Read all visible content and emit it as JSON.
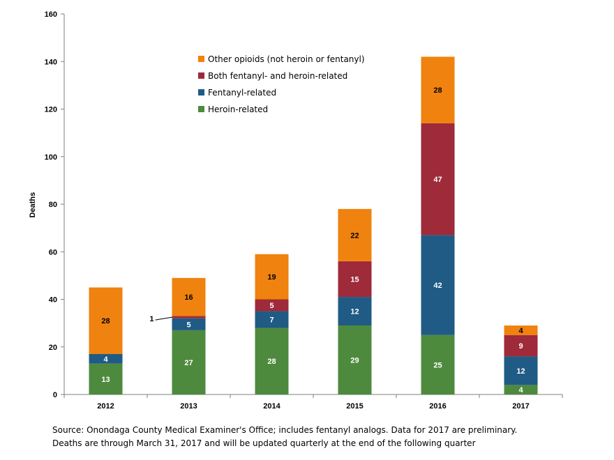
{
  "chart_data": {
    "type": "bar",
    "stacked": true,
    "categories": [
      "2012",
      "2013",
      "2014",
      "2015",
      "2016",
      "2017"
    ],
    "series": [
      {
        "name": "Heroin-related",
        "color": "#4e8a3e",
        "values": [
          13,
          27,
          28,
          29,
          25,
          4
        ]
      },
      {
        "name": "Fentanyl-related",
        "color": "#1f5b84",
        "values": [
          4,
          5,
          7,
          12,
          42,
          12
        ]
      },
      {
        "name": "Both fentanyl- and heroin-related",
        "color": "#9e2a3a",
        "values": [
          0,
          1,
          5,
          15,
          47,
          9
        ]
      },
      {
        "name": "Other opioids (not heroin or fentanyl)",
        "color": "#f0820f",
        "values": [
          28,
          16,
          19,
          22,
          28,
          4
        ]
      }
    ],
    "ylabel": "Deaths",
    "xlabel": "",
    "ylim": [
      0,
      160
    ],
    "yticks": [
      0,
      20,
      40,
      60,
      80,
      100,
      120,
      140,
      160
    ],
    "grid": false,
    "legend_position": "top-center",
    "legend_order": [
      "Other opioids (not heroin or fentanyl)",
      "Both fentanyl- and heroin-related",
      "Fentanyl-related",
      "Heroin-related"
    ],
    "annotations": [
      {
        "category": "2013",
        "series": "Both fentanyl- and heroin-related",
        "text": "1"
      }
    ]
  },
  "source": {
    "line1": "Source: Onondaga County Medical Examiner's Office; includes fentanyl analogs. Data for 2017 are preliminary.",
    "line2": "Deaths are through March 31, 2017 and will be updated quarterly at the end of the following quarter"
  }
}
